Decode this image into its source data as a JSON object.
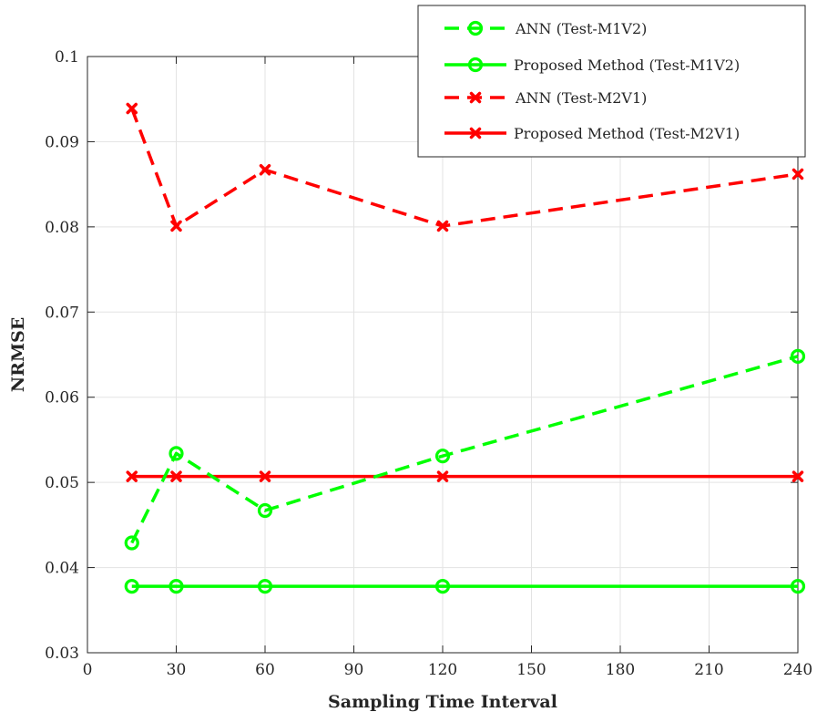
{
  "chart_data": {
    "type": "line",
    "title": "",
    "xlabel": "Sampling Time Interval",
    "ylabel": "NRMSE",
    "xlim": [
      0,
      240
    ],
    "ylim": [
      0.03,
      0.1
    ],
    "xticks": [
      0,
      30,
      60,
      90,
      120,
      150,
      180,
      210,
      240
    ],
    "yticks": [
      0.03,
      0.04,
      0.05,
      0.06,
      0.07,
      0.08,
      0.09,
      0.1
    ],
    "xtick_labels": [
      "0",
      "30",
      "60",
      "90",
      "120",
      "150",
      "180",
      "210",
      "240"
    ],
    "ytick_labels": [
      "0.03",
      "0.04",
      "0.05",
      "0.06",
      "0.07",
      "0.08",
      "0.09",
      "0.1"
    ],
    "grid": true,
    "legend_position": "top-right",
    "x": [
      15,
      30,
      60,
      120,
      240
    ],
    "series": [
      {
        "name": "ANN (Test-M1V2)",
        "values": [
          0.0429,
          0.0534,
          0.0467,
          0.0531,
          0.0648
        ],
        "color": "#00ff00",
        "dash": "dashed",
        "marker": "circle"
      },
      {
        "name": "Proposed Method (Test-M1V2)",
        "values": [
          0.0378,
          0.0378,
          0.0378,
          0.0378,
          0.0378
        ],
        "color": "#00ff00",
        "dash": "solid",
        "marker": "circle"
      },
      {
        "name": "ANN (Test-M2V1)",
        "values": [
          0.0939,
          0.0801,
          0.0867,
          0.0801,
          0.0862
        ],
        "color": "#ff0000",
        "dash": "dashed",
        "marker": "x"
      },
      {
        "name": "Proposed Method (Test-M2V1)",
        "values": [
          0.0507,
          0.0507,
          0.0507,
          0.0507,
          0.0507
        ],
        "color": "#ff0000",
        "dash": "solid",
        "marker": "x"
      }
    ]
  }
}
